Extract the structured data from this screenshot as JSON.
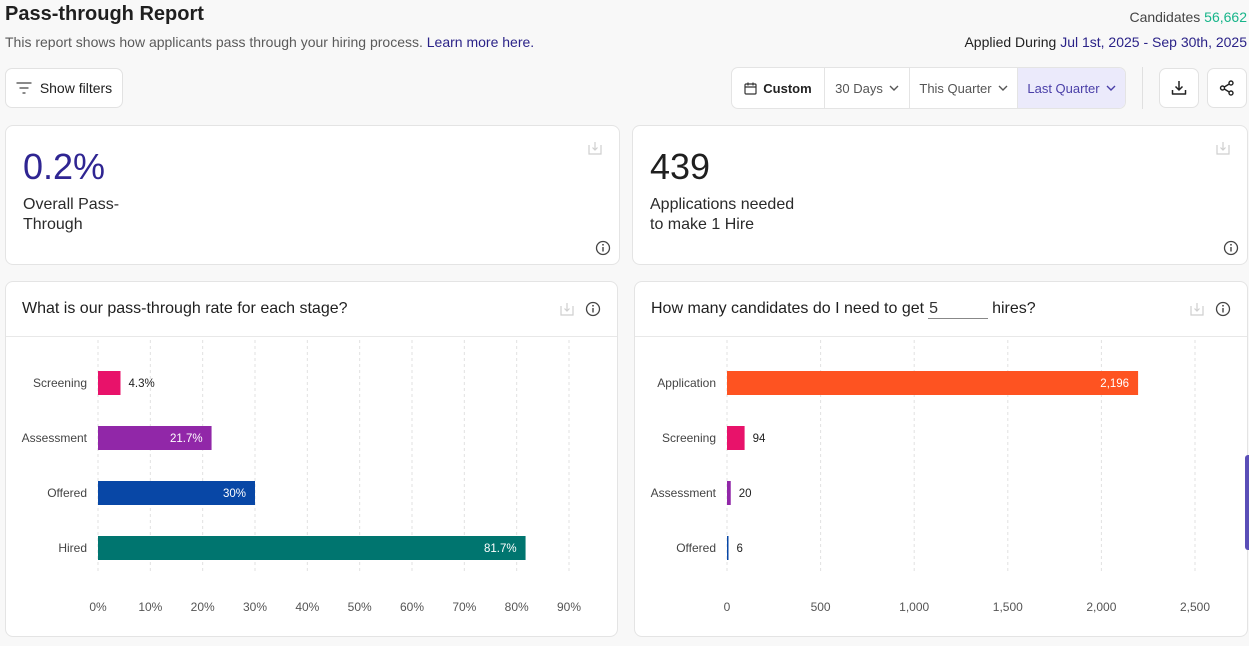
{
  "header": {
    "title": "Pass-through Report",
    "description": "This report shows how applicants pass through your hiring process.",
    "learn_more": "Learn more here.",
    "candidates_label": "Candidates",
    "candidates_count": "56,662",
    "applied_label": "Applied During",
    "applied_range": "Jul 1st, 2025 - Sep 30th, 2025"
  },
  "toolbar": {
    "show_filters": "Show filters",
    "date_options": [
      {
        "label": "Custom",
        "icon": "calendar-icon"
      },
      {
        "label": "30 Days",
        "icon": "chevron-down-icon"
      },
      {
        "label": "This Quarter",
        "icon": "chevron-down-icon"
      },
      {
        "label": "Last Quarter",
        "icon": "chevron-down-icon",
        "selected": true
      }
    ],
    "download_icon": "download-icon",
    "share_icon": "share-icon"
  },
  "kpis": [
    {
      "value": "0.2%",
      "label": "Overall Pass-Through"
    },
    {
      "value": "439",
      "label": "Applications needed to make 1 Hire"
    }
  ],
  "colors": {
    "accent": "#2f2592",
    "candidates_green": "#17b58a",
    "selected_bg": "#ebeafb"
  },
  "chart_data": [
    {
      "type": "bar",
      "orientation": "horizontal",
      "title": "What is our pass-through rate for each stage?",
      "categories": [
        "Screening",
        "Assessment",
        "Offered",
        "Hired"
      ],
      "values": [
        4.3,
        21.7,
        30,
        81.7
      ],
      "value_labels": [
        "4.3%",
        "21.7%",
        "30%",
        "81.7%"
      ],
      "colors": [
        "#e8126a",
        "#9127a8",
        "#0847a6",
        "#00756f"
      ],
      "xlabel": "",
      "ylabel": "",
      "xlim": [
        0,
        90
      ],
      "xticks": [
        0,
        10,
        20,
        30,
        40,
        50,
        60,
        70,
        80,
        90
      ],
      "xtick_labels": [
        "0%",
        "10%",
        "20%",
        "30%",
        "40%",
        "50%",
        "60%",
        "70%",
        "80%",
        "90%"
      ],
      "grid": true
    },
    {
      "type": "bar",
      "orientation": "horizontal",
      "title_prefix": "How many candidates do I need to get",
      "title_suffix": "hires?",
      "hires_input": "5",
      "categories": [
        "Application",
        "Screening",
        "Assessment",
        "Offered"
      ],
      "values": [
        2196,
        94,
        20,
        6
      ],
      "value_labels": [
        "2,196",
        "94",
        "20",
        "6"
      ],
      "colors": [
        "#fe5321",
        "#e8126a",
        "#9127a8",
        "#0847a6"
      ],
      "xlabel": "",
      "ylabel": "",
      "xlim": [
        0,
        2500
      ],
      "xticks": [
        0,
        500,
        1000,
        1500,
        2000,
        2500
      ],
      "xtick_labels": [
        "0",
        "500",
        "1,000",
        "1,500",
        "2,000",
        "2,500"
      ],
      "grid": true
    }
  ]
}
